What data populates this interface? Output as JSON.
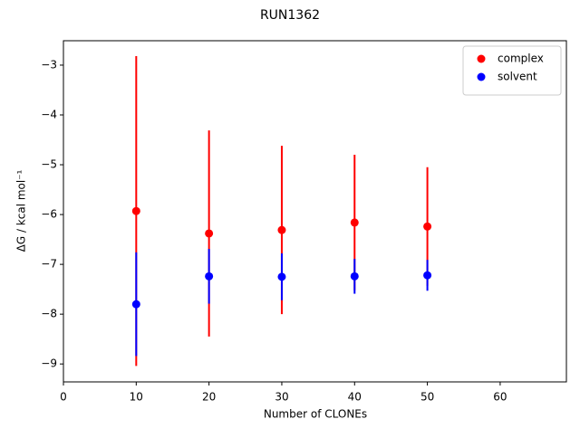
{
  "chart_data": {
    "type": "scatter",
    "title": "RUN1362",
    "x_label": "Number of CLONEs",
    "y_label": "ΔG / kcal mol⁻¹",
    "xlim": [
      0,
      69.1
    ],
    "ylim": [
      -9.36,
      -2.51
    ],
    "xticks": [
      0,
      10,
      20,
      30,
      40,
      50,
      60
    ],
    "yticks": [
      {
        "value": -9,
        "label": "−9"
      },
      {
        "value": -8,
        "label": "−8"
      },
      {
        "value": -7,
        "label": "−7"
      },
      {
        "value": -6,
        "label": "−6"
      },
      {
        "value": -5,
        "label": "−5"
      },
      {
        "value": -4,
        "label": "−4"
      },
      {
        "value": -3,
        "label": "−3"
      }
    ],
    "legend": "upper right",
    "grid": false,
    "series": [
      {
        "name": "complex",
        "color": "#ff0000",
        "x": [
          10,
          20,
          30,
          40,
          50
        ],
        "values": [
          -5.93,
          -6.38,
          -6.31,
          -6.16,
          -6.24
        ],
        "errors": [
          3.11,
          2.07,
          1.69,
          1.36,
          1.19
        ]
      },
      {
        "name": "solvent",
        "color": "#0000ff",
        "x": [
          10,
          20,
          30,
          40,
          50
        ],
        "values": [
          -7.8,
          -7.24,
          -7.25,
          -7.24,
          -7.22
        ],
        "errors": [
          1.04,
          0.55,
          0.47,
          0.35,
          0.31
        ]
      }
    ]
  }
}
